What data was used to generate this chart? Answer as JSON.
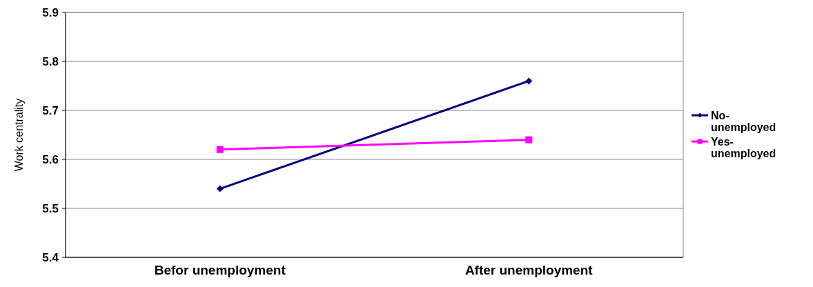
{
  "chart_data": {
    "type": "line",
    "ylabel": "Work centrality",
    "categories": [
      "Befor unemployment",
      "After unemployment"
    ],
    "series": [
      {
        "name": "No-unemployed",
        "color": "#000080",
        "values": [
          5.54,
          5.76
        ],
        "marker": "diamond"
      },
      {
        "name": "Yes-unemployed",
        "color": "#ff00ff",
        "values": [
          5.62,
          5.64
        ],
        "marker": "square"
      }
    ],
    "ylim": [
      5.4,
      5.9
    ],
    "yticks": [
      5.4,
      5.5,
      5.6,
      5.7,
      5.8,
      5.9
    ],
    "grid": "y",
    "legend": "right"
  }
}
